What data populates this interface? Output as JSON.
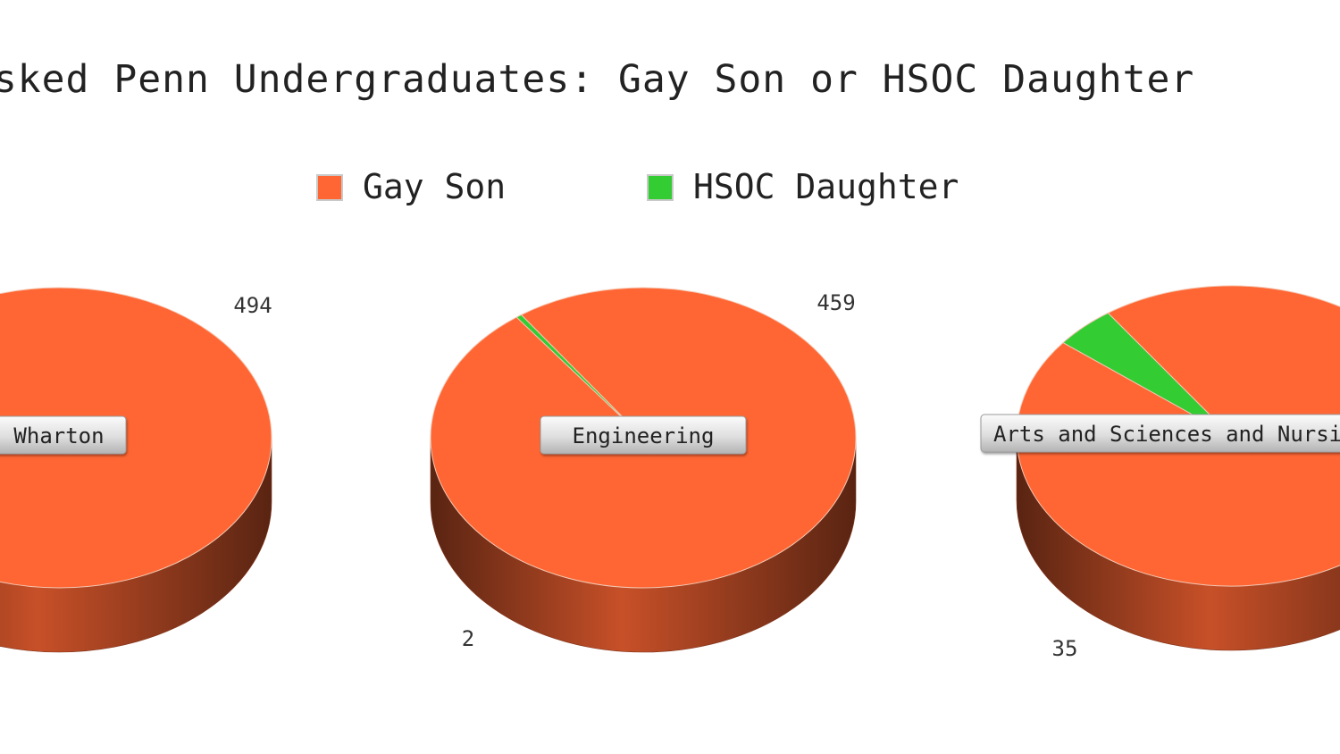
{
  "chart_data": {
    "type": "pie",
    "title": "Asked Penn Undergraduates: Gay Son or HSOC Daughter",
    "legend": {
      "placement": "top"
    },
    "series": [
      {
        "name": "Gay Son",
        "color": "#ff6633"
      },
      {
        "name": "HSOC Daughter",
        "color": "#33cc33"
      }
    ],
    "pies": [
      {
        "label": "Wharton",
        "values": [
          494,
          0
        ],
        "value_labels": [
          "494",
          ""
        ]
      },
      {
        "label": "Engineering",
        "values": [
          459,
          2
        ],
        "value_labels": [
          "459",
          "2"
        ]
      },
      {
        "label": "Arts and Sciences and Nursing",
        "values": [
          725,
          35
        ],
        "value_labels": [
          "",
          "35"
        ]
      }
    ]
  }
}
